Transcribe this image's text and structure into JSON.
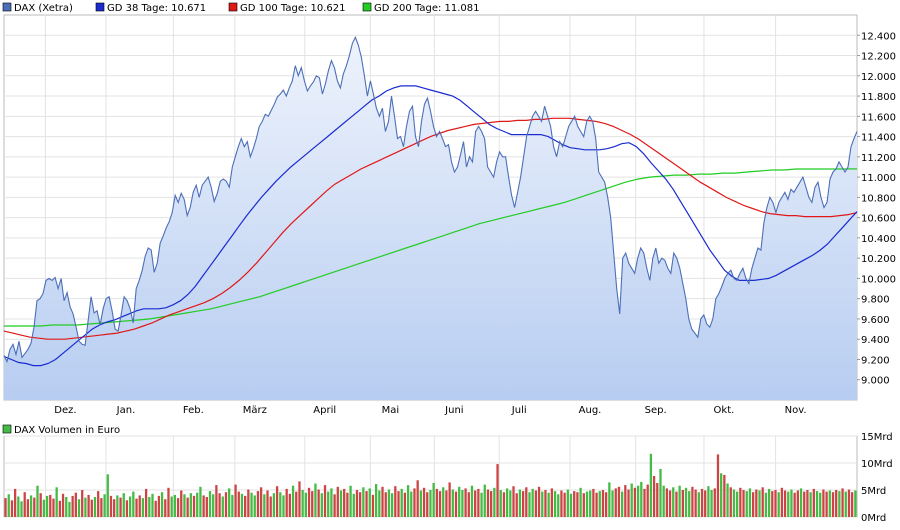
{
  "legend": [
    {
      "label": "DAX (Xetra)",
      "color": "#4d6fb8"
    },
    {
      "label": "GD 38 Tage: 10.671",
      "color": "#1a2bd0"
    },
    {
      "label": "GD 100 Tage: 10.621",
      "color": "#e01818"
    },
    {
      "label": "GD 200 Tage: 11.081",
      "color": "#22cc22"
    }
  ],
  "chart_data": [
    {
      "type": "area",
      "x_ticks": [
        "Dez.",
        "Jan.",
        "Feb.",
        "März",
        "April",
        "Mai",
        "Juni",
        "Juli",
        "Aug.",
        "Sep.",
        "Okt.",
        "Nov."
      ],
      "ylim": [
        8800,
        12600
      ],
      "y_ticks": [
        "9.000",
        "9.200",
        "9.400",
        "9.600",
        "9.800",
        "10.000",
        "10.200",
        "10.400",
        "10.600",
        "10.800",
        "11.000",
        "11.200",
        "11.400",
        "11.600",
        "11.800",
        "12.000",
        "12.200",
        "12.400"
      ],
      "y_tick_values": [
        9000,
        9200,
        9400,
        9600,
        9800,
        10000,
        10200,
        10400,
        10600,
        10800,
        11000,
        11200,
        11400,
        11600,
        11800,
        12000,
        12200,
        12400
      ],
      "grid": true,
      "series": [
        {
          "name": "DAX (Xetra)",
          "color": "#4d6fb8",
          "fill": true,
          "values": [
            9240,
            9180,
            9300,
            9350,
            9250,
            9380,
            9220,
            9260,
            9300,
            9360,
            9520,
            9780,
            9800,
            9850,
            9980,
            10000,
            9980,
            10010,
            9900,
            10000,
            9780,
            9860,
            9720,
            9650,
            9520,
            9380,
            9350,
            9340,
            9580,
            9820,
            9660,
            9680,
            9540,
            9700,
            9800,
            9820,
            9680,
            9500,
            9480,
            9640,
            9820,
            9780,
            9700,
            9560,
            9900,
            9980,
            10080,
            10220,
            10300,
            10280,
            10060,
            10150,
            10350,
            10420,
            10500,
            10560,
            10650,
            10820,
            10750,
            10840,
            10780,
            10620,
            10700,
            10850,
            10920,
            10800,
            10920,
            10960,
            11000,
            10900,
            10760,
            10840,
            10960,
            10980,
            10960,
            10900,
            11100,
            11200,
            11300,
            11380,
            11300,
            11350,
            11200,
            11280,
            11380,
            11500,
            11550,
            11620,
            11600,
            11660,
            11720,
            11790,
            11820,
            11860,
            11800,
            11880,
            11950,
            12100,
            12000,
            12080,
            11950,
            11850,
            11900,
            11940,
            12000,
            11980,
            11820,
            11920,
            12050,
            12150,
            12080,
            11950,
            11880,
            12020,
            12100,
            12200,
            12320,
            12380,
            12300,
            12180,
            12000,
            11800,
            11950,
            11820,
            11680,
            11600,
            11680,
            11450,
            11550,
            11800,
            11600,
            11380,
            11400,
            11300,
            11500,
            11650,
            11700,
            11400,
            11300,
            11550,
            11720,
            11780,
            11650,
            11500,
            11400,
            11450,
            11380,
            11300,
            11320,
            11150,
            11050,
            11100,
            11220,
            11350,
            11100,
            11200,
            11150,
            11450,
            11500,
            11450,
            11380,
            11100,
            11050,
            11000,
            11150,
            11250,
            11200,
            11200,
            11000,
            10820,
            10700,
            10850,
            11000,
            11200,
            11400,
            11500,
            11600,
            11650,
            11600,
            11550,
            11700,
            11600,
            11500,
            11300,
            11200,
            11350,
            11300,
            11400,
            11500,
            11550,
            11600,
            11500,
            11450,
            11400,
            11550,
            11600,
            11550,
            11380,
            11050,
            11000,
            10950,
            10800,
            10600,
            10250,
            9900,
            9650,
            10200,
            10250,
            10150,
            10100,
            10050,
            10200,
            10300,
            10250,
            10100,
            9980,
            10200,
            10300,
            10150,
            10200,
            10180,
            10100,
            10050,
            10250,
            10200,
            10100,
            9950,
            9800,
            9600,
            9500,
            9460,
            9420,
            9600,
            9640,
            9550,
            9520,
            9600,
            9800,
            9850,
            9920,
            10000,
            10050,
            10080,
            10000,
            9980,
            10050,
            10100,
            10000,
            9950,
            10100,
            10200,
            10300,
            10280,
            10550,
            10700,
            10800,
            10750,
            10650,
            10750,
            10800,
            10850,
            10780,
            10880,
            10850,
            10900,
            10950,
            11000,
            10900,
            10800,
            10750,
            10900,
            10950,
            10800,
            10700,
            10750,
            10980,
            11050,
            11080,
            11150,
            11100,
            11050,
            11100,
            11300,
            11380,
            11450
          ]
        },
        {
          "name": "GD 38 Tage: 10.671",
          "color": "#1a2bd0",
          "values": [
            9230,
            9200,
            9170,
            9160,
            9140,
            9140,
            9160,
            9200,
            9260,
            9320,
            9380,
            9440,
            9500,
            9540,
            9570,
            9590,
            9620,
            9650,
            9680,
            9700,
            9700,
            9700,
            9710,
            9740,
            9780,
            9840,
            9920,
            10020,
            10120,
            10220,
            10320,
            10420,
            10520,
            10620,
            10710,
            10800,
            10880,
            10960,
            11030,
            11100,
            11160,
            11220,
            11280,
            11340,
            11400,
            11460,
            11520,
            11580,
            11640,
            11700,
            11760,
            11800,
            11850,
            11880,
            11900,
            11900,
            11900,
            11880,
            11860,
            11840,
            11820,
            11800,
            11760,
            11700,
            11640,
            11580,
            11520,
            11480,
            11450,
            11420,
            11420,
            11420,
            11420,
            11420,
            11400,
            11360,
            11320,
            11290,
            11280,
            11270,
            11270,
            11270,
            11280,
            11300,
            11330,
            11340,
            11300,
            11230,
            11140,
            11060,
            10980,
            10880,
            10760,
            10640,
            10520,
            10400,
            10280,
            10180,
            10080,
            10020,
            9980,
            9980,
            9980,
            9990,
            10000,
            10030,
            10070,
            10110,
            10150,
            10190,
            10230,
            10280,
            10340,
            10420,
            10500,
            10580,
            10660
          ]
        },
        {
          "name": "GD 100 Tage: 10.621",
          "color": "#e01818",
          "values": [
            9480,
            9460,
            9440,
            9420,
            9410,
            9400,
            9400,
            9400,
            9410,
            9420,
            9430,
            9440,
            9450,
            9460,
            9480,
            9500,
            9530,
            9560,
            9600,
            9640,
            9670,
            9700,
            9730,
            9760,
            9800,
            9850,
            9910,
            9980,
            10060,
            10150,
            10250,
            10350,
            10450,
            10540,
            10620,
            10700,
            10780,
            10860,
            10930,
            10980,
            11030,
            11080,
            11120,
            11160,
            11200,
            11240,
            11280,
            11320,
            11360,
            11400,
            11430,
            11460,
            11480,
            11500,
            11520,
            11530,
            11540,
            11550,
            11550,
            11560,
            11560,
            11570,
            11570,
            11580,
            11580,
            11580,
            11570,
            11560,
            11550,
            11530,
            11500,
            11460,
            11420,
            11370,
            11310,
            11250,
            11190,
            11130,
            11070,
            11010,
            10950,
            10900,
            10850,
            10800,
            10760,
            10720,
            10690,
            10660,
            10640,
            10630,
            10620,
            10620,
            10610,
            10610,
            10610,
            10610,
            10620,
            10630,
            10650
          ]
        },
        {
          "name": "GD 200 Tage: 11.081",
          "color": "#22cc22",
          "values": [
            9530,
            9530,
            9530,
            9530,
            9540,
            9540,
            9540,
            9550,
            9560,
            9570,
            9580,
            9590,
            9600,
            9620,
            9640,
            9660,
            9680,
            9700,
            9730,
            9760,
            9790,
            9820,
            9860,
            9900,
            9940,
            9980,
            10020,
            10060,
            10100,
            10140,
            10180,
            10220,
            10260,
            10300,
            10340,
            10380,
            10420,
            10460,
            10500,
            10540,
            10570,
            10600,
            10630,
            10660,
            10690,
            10720,
            10750,
            10790,
            10830,
            10870,
            10910,
            10950,
            10980,
            11000,
            11010,
            11020,
            11020,
            11030,
            11030,
            11040,
            11040,
            11050,
            11060,
            11070,
            11070,
            11080,
            11080,
            11080,
            11080,
            11080,
            11081
          ]
        }
      ]
    },
    {
      "type": "bar",
      "title": "DAX Volumen in Euro",
      "ylim": [
        0,
        15
      ],
      "y_ticks": [
        "0Mrd",
        "5Mrd",
        "10Mrd",
        "15Mrd"
      ],
      "y_tick_values": [
        0,
        5,
        10,
        15
      ],
      "grid": true,
      "colors": {
        "up": "#44bb44",
        "down": "#cc4444"
      },
      "values": [
        3.5,
        4.2,
        3.1,
        5.2,
        3.8,
        2.9,
        4.6,
        3.3,
        4.0,
        3.6,
        5.8,
        4.4,
        3.2,
        3.9,
        4.1,
        3.4,
        5.5,
        3.0,
        4.3,
        3.7,
        2.8,
        3.9,
        4.5,
        3.3,
        5.0,
        3.6,
        4.1,
        3.2,
        3.7,
        4.8,
        3.5,
        4.2,
        7.9,
        3.9,
        3.3,
        4.0,
        3.6,
        4.4,
        3.1,
        3.8,
        4.7,
        3.4,
        4.0,
        3.5,
        5.2,
        3.7,
        4.3,
        3.0,
        3.9,
        4.6,
        3.3,
        5.4,
        3.8,
        4.1,
        3.5,
        4.9,
        4.2,
        3.6,
        4.4,
        3.9,
        4.5,
        5.6,
        4.0,
        3.7,
        4.8,
        4.2,
        5.9,
        4.4,
        3.8,
        4.6,
        5.3,
        4.1,
        6.0,
        4.7,
        4.3,
        3.9,
        5.1,
        4.5,
        4.0,
        4.8,
        5.5,
        4.2,
        4.9,
        3.8,
        4.4,
        5.7,
        4.6,
        4.0,
        5.2,
        4.3,
        5.8,
        4.7,
        6.6,
        5.0,
        4.5,
        5.4,
        4.8,
        6.2,
        5.1,
        4.4,
        5.9,
        4.7,
        5.3,
        4.2,
        5.6,
        4.9,
        5.2,
        4.5,
        5.8,
        4.3,
        5.0,
        4.6,
        5.5,
        4.8,
        5.3,
        4.1,
        6.1,
        4.9,
        5.6,
        4.6,
        5.1,
        4.4,
        5.7,
        4.8,
        5.2,
        4.5,
        5.9,
        4.7,
        5.3,
        6.8,
        4.9,
        5.4,
        4.6,
        5.0,
        6.3,
        5.2,
        4.8,
        5.5,
        4.9,
        6.4,
        5.1,
        4.7,
        5.6,
        5.0,
        5.3,
        4.6,
        5.8,
        4.9,
        5.2,
        4.5,
        6.0,
        5.1,
        4.8,
        5.4,
        9.8,
        5.0,
        4.6,
        5.3,
        4.9,
        5.7,
        4.4,
        5.1,
        4.8,
        5.5,
        4.6,
        5.2,
        4.9,
        5.6,
        4.7,
        5.0,
        4.5,
        5.3,
        4.8,
        4.2,
        4.9,
        4.5,
        5.1,
        4.3,
        4.8,
        4.6,
        5.4,
        4.4,
        4.7,
        4.9,
        5.2,
        4.5,
        4.8,
        5.0,
        4.6,
        6.4,
        4.9,
        5.3,
        5.6,
        4.7,
        5.9,
        5.1,
        6.2,
        5.4,
        5.8,
        6.5,
        5.2,
        6.0,
        11.7,
        7.6,
        6.3,
        8.9,
        5.8,
        5.3,
        4.9,
        5.5,
        4.7,
        5.8,
        5.0,
        5.4,
        4.8,
        5.6,
        5.1,
        4.6,
        5.2,
        4.9,
        5.7,
        5.0,
        5.3,
        11.6,
        8.1,
        7.8,
        6.2,
        5.5,
        5.1,
        4.7,
        5.4,
        5.0,
        4.8,
        5.3,
        4.6,
        5.1,
        4.9,
        5.5,
        4.5,
        5.2,
        4.8,
        5.0,
        4.6,
        5.4,
        4.9,
        4.7,
        5.1,
        4.5,
        4.9,
        5.3,
        4.7,
        5.0,
        4.6,
        5.2,
        4.8,
        4.5,
        5.1,
        4.7,
        4.9,
        4.6,
        5.0,
        4.8,
        5.3,
        4.7,
        5.1,
        4.6,
        4.9
      ],
      "directions": "dudduuddududuuddudduuddududdudduuddududuudduduuddudduuddududuudduudduduuddudduuddudduduuddudduuddududuuddudduuddududuudduudduduuddudduuddudduduuddudduuddududuuddudduuddududuudduudduduuddudduuddudduduuddudduuddududuuddudduuddududuudduudduduuddudduuddudduduudduddu"
    }
  ]
}
